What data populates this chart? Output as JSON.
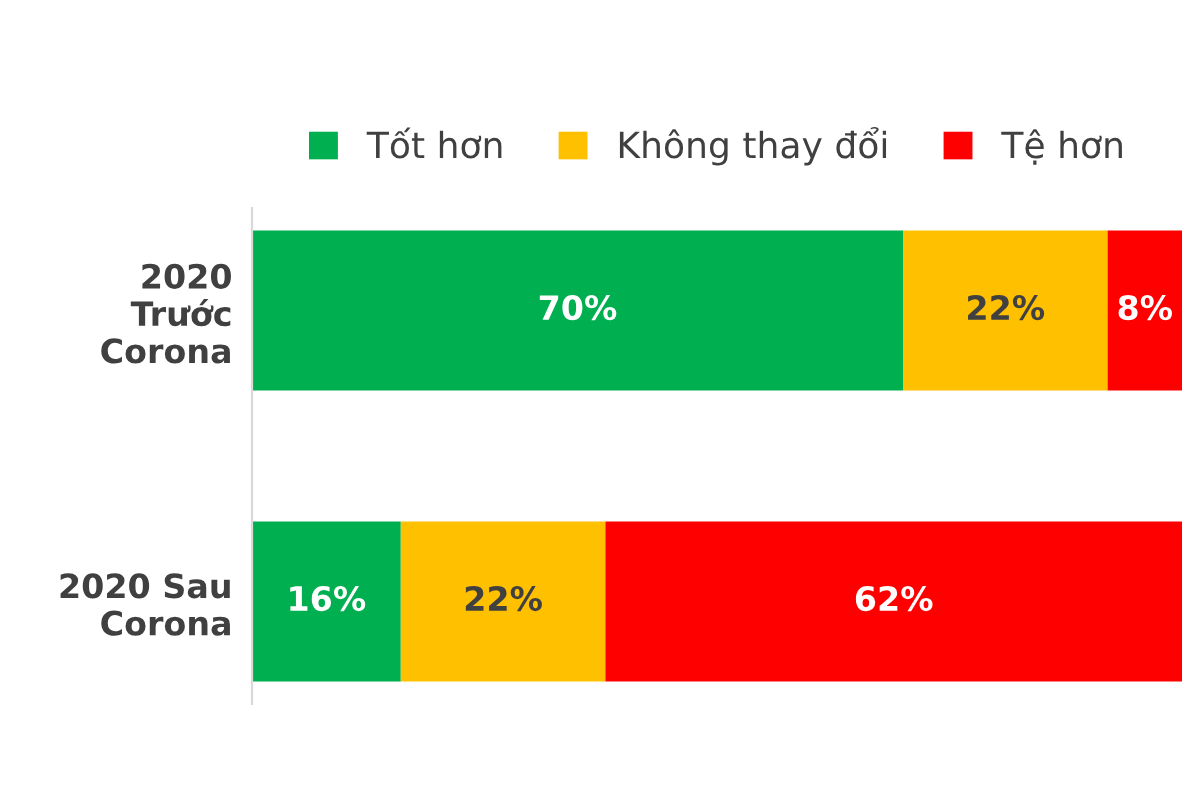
{
  "chart_data": {
    "type": "bar",
    "orientation": "horizontal",
    "stacked": true,
    "categories": [
      "2020 Trước Corona",
      "2020 Sau Corona"
    ],
    "series": [
      {
        "name": "Tốt hơn",
        "color": "#00b050",
        "values": [
          70,
          16
        ],
        "value_labels": [
          "70%",
          "16%"
        ]
      },
      {
        "name": "Không thay đổi",
        "color": "#ffc000",
        "values": [
          22,
          22
        ],
        "value_labels": [
          "22%",
          "22%"
        ]
      },
      {
        "name": "Tệ hơn",
        "color": "#ff0000",
        "values": [
          8,
          62
        ],
        "value_labels": [
          "8%",
          "62%"
        ]
      }
    ],
    "legend": "top",
    "tick_labels": "y",
    "grid": false
  }
}
